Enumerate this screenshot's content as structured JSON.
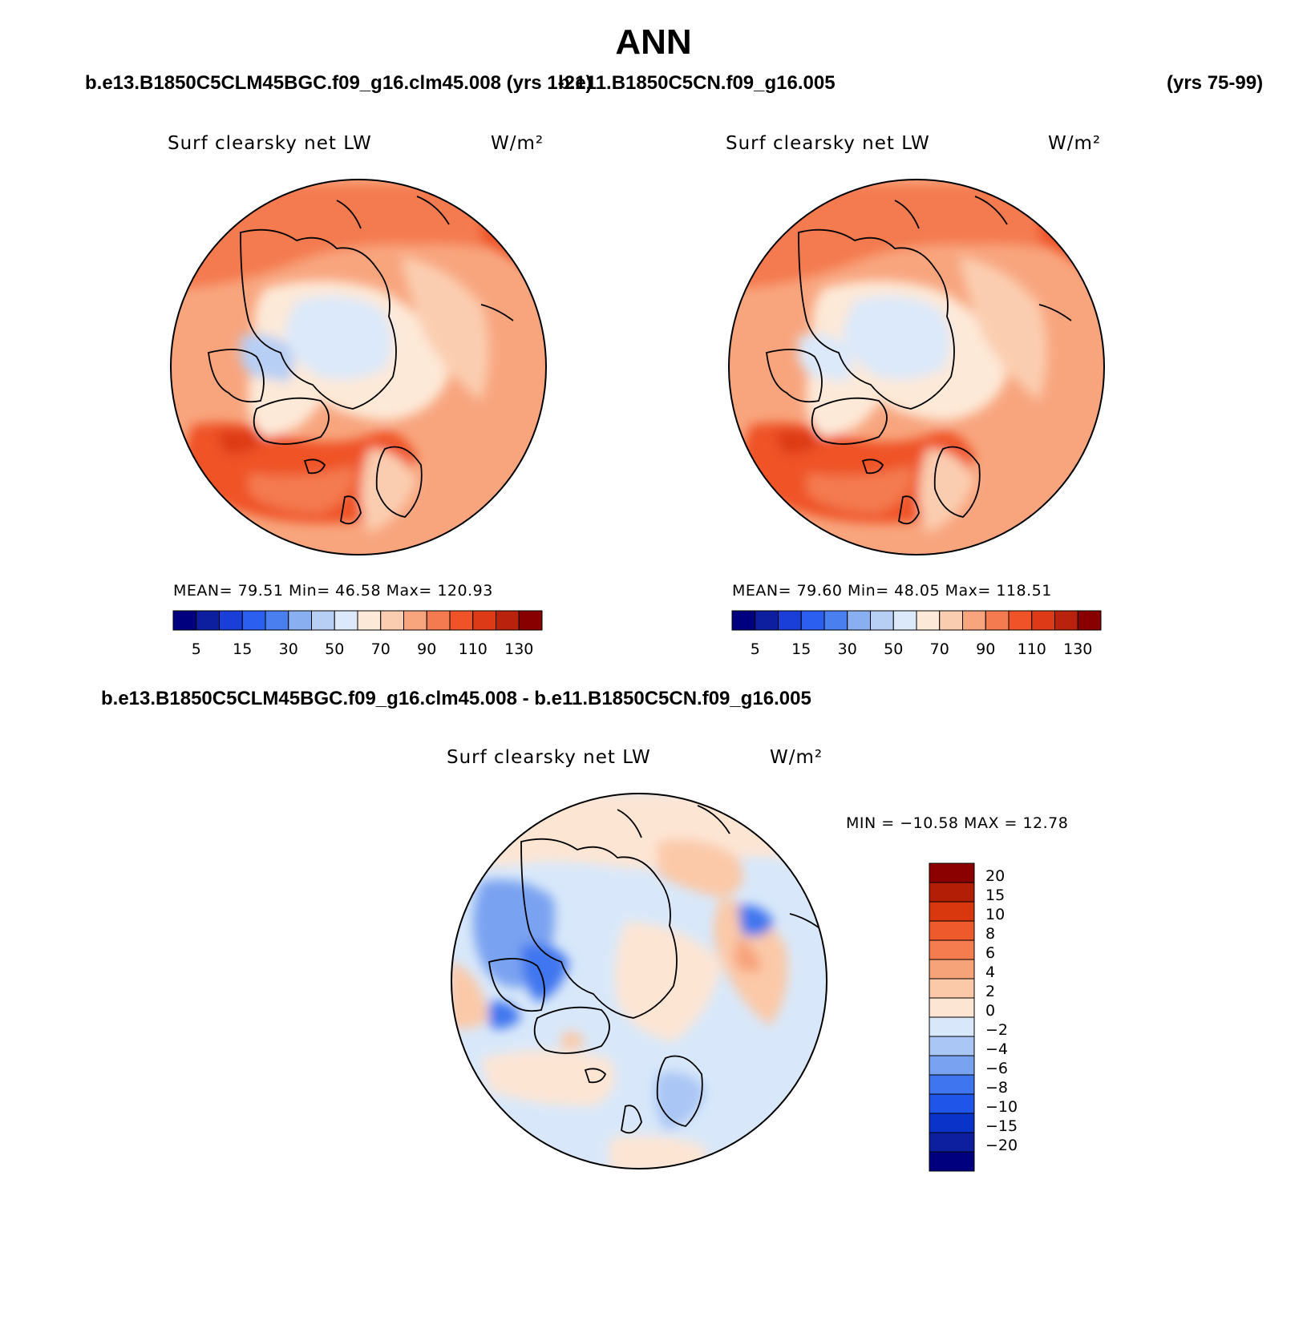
{
  "figure": {
    "title": "ANN",
    "case1_label": "b.e13.B1850C5CLM45BGC.f09_g16.clm45.008 (yrs 1-21)",
    "case2_label": "b.e11.B1850C5CN.f09_g16.005",
    "case2_years": "(yrs 75-99)",
    "diff_label": "b.e13.B1850C5CLM45BGC.f09_g16.clm45.008 - b.e11.B1850C5CN.f09_g16.005"
  },
  "panels": {
    "left": {
      "variable": "Surf clearsky net LW",
      "units": "W/m²",
      "stats": "MEAN=   79.51   Min=   46.58   Max= 120.93"
    },
    "right": {
      "variable": "Surf clearsky net LW",
      "units": "W/m²",
      "stats": "MEAN=   79.60   Min=   48.05   Max= 118.51"
    },
    "diff": {
      "variable": "Surf clearsky net LW",
      "units": "W/m²",
      "stats": "MIN = −10.58 MAX =   12.78"
    }
  },
  "colors": {
    "abs_scale": [
      "#00007f",
      "#0d1f9e",
      "#1a3fd9",
      "#2b5ff0",
      "#4a7ff0",
      "#8aaff0",
      "#b8cff5",
      "#dbe9fa",
      "#fde9d8",
      "#fbcdb0",
      "#f8a57e",
      "#f47a4f",
      "#ef5327",
      "#dd3a17",
      "#b9220c",
      "#880000"
    ],
    "diff_scale": [
      "#00007f",
      "#0d1f9e",
      "#0a34c9",
      "#1f55e8",
      "#3f76ef",
      "#79a2f0",
      "#aac6f5",
      "#d8e8fa",
      "#fde5d4",
      "#fbc9a8",
      "#f7a37a",
      "#f47c4f",
      "#ee5a2b",
      "#d9380f",
      "#b21e06",
      "#8b0000"
    ]
  },
  "chart_data": [
    {
      "type": "heatmap",
      "title": "Surf clearsky net LW",
      "units": "W/m²",
      "colorbar_ticks": [
        "5",
        "15",
        "30",
        "50",
        "70",
        "90",
        "110",
        "130"
      ],
      "mean": 79.51,
      "min": 46.58,
      "max": 120.93
    },
    {
      "type": "heatmap",
      "title": "Surf clearsky net LW",
      "units": "W/m²",
      "colorbar_ticks": [
        "5",
        "15",
        "30",
        "50",
        "70",
        "90",
        "110",
        "130"
      ],
      "mean": 79.6,
      "min": 48.05,
      "max": 118.51
    },
    {
      "type": "heatmap",
      "title": "Surf clearsky net LW",
      "units": "W/m²",
      "colorbar_ticks": [
        "20",
        "15",
        "10",
        "8",
        "6",
        "4",
        "2",
        "0",
        "−2",
        "−4",
        "−6",
        "−8",
        "−10",
        "−15",
        "−20"
      ],
      "min": -10.58,
      "max": 12.78
    }
  ]
}
